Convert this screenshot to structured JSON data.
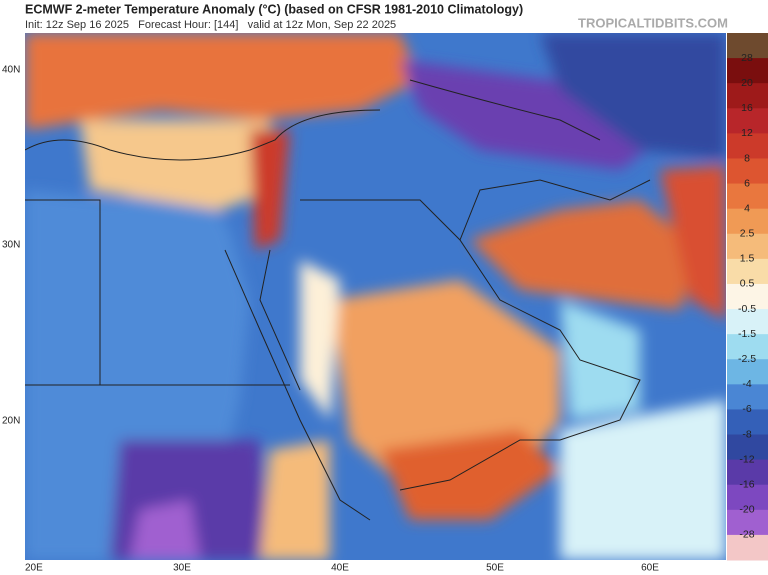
{
  "header": {
    "title": "ECMWF 2-meter Temperature Anomaly (°C) (based on CFSR 1981-2010 Climatology)",
    "subtitle": "Init: 12z Sep 16 2025   Forecast Hour: [144]   valid at 12z Mon, Sep 22 2025",
    "watermark": "TROPICALTIDBITS.COM"
  },
  "map": {
    "lat_labels": [
      "40N",
      "30N",
      "20N"
    ],
    "lon_labels": [
      "20E",
      "30E",
      "40E",
      "50E",
      "60E"
    ]
  },
  "colorbar": {
    "labels": [
      "28",
      "20",
      "16",
      "12",
      "8",
      "6",
      "4",
      "2.5",
      "1.5",
      "0.5",
      "-0.5",
      "-1.5",
      "-2.5",
      "-4",
      "-6",
      "-8",
      "-12",
      "-16",
      "-20",
      "-28"
    ],
    "colors": [
      "#6e4a2e",
      "#7a0e0e",
      "#9e1a1a",
      "#b8262a",
      "#cc3a2a",
      "#dd5530",
      "#e9773e",
      "#f09a55",
      "#f5bb7a",
      "#f9dca8",
      "#fdf5e6",
      "#d8f2f8",
      "#9edcf0",
      "#6db6e4",
      "#4a86d4",
      "#3460b8",
      "#3048a0",
      "#5a3aa8",
      "#7d48c0",
      "#a060d0",
      "#f3c7c7"
    ]
  }
}
